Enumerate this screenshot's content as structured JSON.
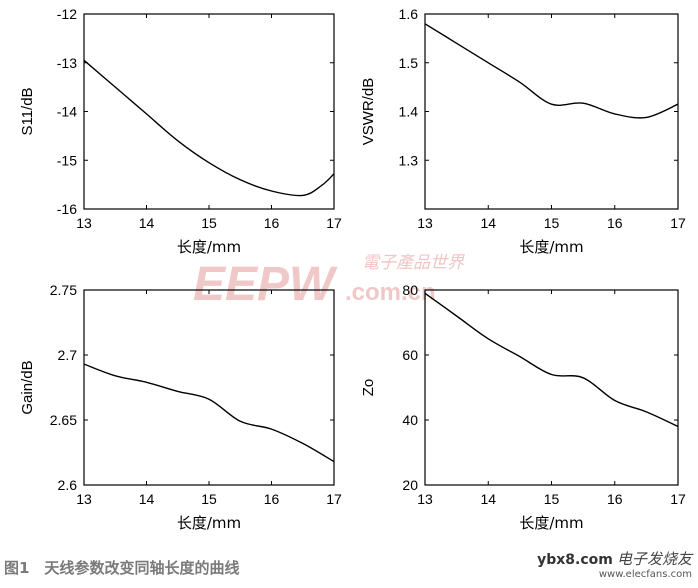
{
  "watermark": {
    "logo": "EEPW",
    "url": ".com.cn",
    "cn_name": "電子產品世界"
  },
  "caption": "图1　天线参数改变同轴长度的曲线",
  "corner_watermark": {
    "site": "ybx8.com",
    "cn": "电子发烧友",
    "url": "www.elecfans.com"
  },
  "chart_data": [
    {
      "type": "line",
      "xlabel": "长度/mm",
      "ylabel": "S11/dB",
      "xlim": [
        13,
        17
      ],
      "ylim": [
        -16,
        -12
      ],
      "xticks": [
        "13",
        "14",
        "15",
        "16",
        "17"
      ],
      "yticks": [
        "-16",
        "-15",
        "-14",
        "-13",
        "-12"
      ],
      "x": [
        13,
        13.5,
        14,
        14.5,
        15,
        15.5,
        16,
        16.5,
        16.8,
        17
      ],
      "y": [
        -12.95,
        -13.5,
        -14.05,
        -14.6,
        -15.05,
        -15.4,
        -15.63,
        -15.72,
        -15.52,
        -15.28
      ]
    },
    {
      "type": "line",
      "xlabel": "长度/mm",
      "ylabel": "VSWR/dB",
      "xlim": [
        13,
        17
      ],
      "ylim": [
        1.2,
        1.6
      ],
      "xticks": [
        "13",
        "14",
        "15",
        "16",
        "17"
      ],
      "yticks": [
        "1.3",
        "1.4",
        "1.5",
        "1.6"
      ],
      "x": [
        13,
        13.5,
        14,
        14.5,
        15,
        15.5,
        16,
        16.5,
        17
      ],
      "y": [
        1.58,
        1.54,
        1.5,
        1.46,
        1.415,
        1.417,
        1.395,
        1.388,
        1.415
      ]
    },
    {
      "type": "line",
      "xlabel": "长度/mm",
      "ylabel": "Gain/dB",
      "xlim": [
        13,
        17
      ],
      "ylim": [
        2.6,
        2.75
      ],
      "xticks": [
        "13",
        "14",
        "15",
        "16",
        "17"
      ],
      "yticks": [
        "2.6",
        "2.65",
        "2.7",
        "2.75"
      ],
      "x": [
        13,
        13.5,
        14,
        14.5,
        15,
        15.5,
        16,
        16.5,
        17
      ],
      "y": [
        2.693,
        2.684,
        2.679,
        2.672,
        2.666,
        2.649,
        2.643,
        2.632,
        2.618
      ]
    },
    {
      "type": "line",
      "xlabel": "长度/mm",
      "ylabel": "Zo",
      "xlim": [
        13,
        17
      ],
      "ylim": [
        20,
        80
      ],
      "xticks": [
        "13",
        "14",
        "15",
        "16",
        "17"
      ],
      "yticks": [
        "20",
        "40",
        "60",
        "80"
      ],
      "x": [
        13,
        13.5,
        14,
        14.5,
        15,
        15.5,
        16,
        16.5,
        17
      ],
      "y": [
        79,
        72,
        65,
        59.5,
        54,
        53,
        46,
        42.5,
        38
      ]
    }
  ]
}
